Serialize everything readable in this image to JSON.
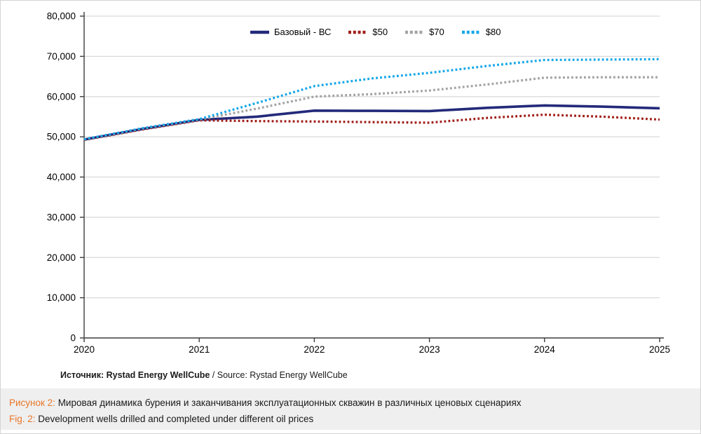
{
  "colors": {
    "grid": "#d9d9d9",
    "axis": "#3c3c3c",
    "caption_accent": "#e8772a",
    "caption_bg": "#efefef",
    "text": "#1a1a1a"
  },
  "chart_data": {
    "type": "line",
    "title": "",
    "xlabel": "",
    "ylabel": "",
    "xlim": [
      2020,
      2025
    ],
    "ylim": [
      0,
      80000
    ],
    "x_ticks": [
      2020,
      2021,
      2022,
      2023,
      2024,
      2025
    ],
    "y_ticks": [
      0,
      10000,
      20000,
      30000,
      40000,
      50000,
      60000,
      70000,
      80000
    ],
    "grid": "horizontal",
    "legend_position": "top-center",
    "x": [
      2020,
      2020.5,
      2021,
      2021.5,
      2022,
      2022.5,
      2023,
      2023.5,
      2024,
      2024.5,
      2025
    ],
    "series": [
      {
        "name": "Базовый - ВС",
        "style": "solid",
        "color": "#232a7a",
        "values": [
          49300,
          51900,
          54200,
          55000,
          56500,
          56450,
          56400,
          57200,
          57800,
          57500,
          57100
        ]
      },
      {
        "name": "$50",
        "style": "dotted",
        "color": "#a01f1a",
        "values": [
          49200,
          51800,
          54100,
          53900,
          53800,
          53650,
          53500,
          54700,
          55500,
          55000,
          54300
        ]
      },
      {
        "name": "$70",
        "style": "dotted",
        "color": "#a3a3a3",
        "values": [
          49300,
          52000,
          54300,
          57000,
          60000,
          60600,
          61500,
          63000,
          64700,
          64800,
          64800
        ]
      },
      {
        "name": "$80",
        "style": "dotted",
        "color": "#14a7e8",
        "values": [
          49400,
          52100,
          54400,
          58400,
          62600,
          64500,
          65900,
          67600,
          69100,
          69200,
          69300
        ]
      }
    ]
  },
  "source_line": {
    "bold_part": "Источник: Rystad Energy WellCube",
    "regular_part": " / Source: Rystad Energy WellCube"
  },
  "caption": {
    "ru_label": "Рисунок 2:",
    "ru_text": " Мировая динамика бурения и заканчивания эксплуатационных скважин в различных ценовых сценариях",
    "en_label": "Fig. 2:",
    "en_text": " Development wells drilled and completed under different oil prices"
  }
}
